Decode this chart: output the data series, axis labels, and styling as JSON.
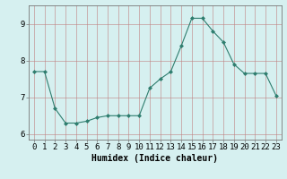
{
  "x": [
    0,
    1,
    2,
    3,
    4,
    5,
    6,
    7,
    8,
    9,
    10,
    11,
    12,
    13,
    14,
    15,
    16,
    17,
    18,
    19,
    20,
    21,
    22,
    23
  ],
  "y": [
    7.7,
    7.7,
    6.7,
    6.3,
    6.3,
    6.35,
    6.45,
    6.5,
    6.5,
    6.5,
    6.5,
    7.25,
    7.5,
    7.7,
    8.4,
    9.15,
    9.15,
    8.8,
    8.5,
    7.9,
    7.65,
    7.65,
    7.65,
    7.05
  ],
  "line_color": "#2e7d6e",
  "marker": "D",
  "marker_size": 2,
  "bg_color": "#d6f0f0",
  "grid_color": "#c08080",
  "xlabel": "Humidex (Indice chaleur)",
  "xlim": [
    -0.5,
    23.5
  ],
  "ylim": [
    5.85,
    9.5
  ],
  "yticks": [
    6,
    7,
    8,
    9
  ],
  "xticks": [
    0,
    1,
    2,
    3,
    4,
    5,
    6,
    7,
    8,
    9,
    10,
    11,
    12,
    13,
    14,
    15,
    16,
    17,
    18,
    19,
    20,
    21,
    22,
    23
  ],
  "xlabel_fontsize": 7,
  "tick_fontsize": 6.5
}
